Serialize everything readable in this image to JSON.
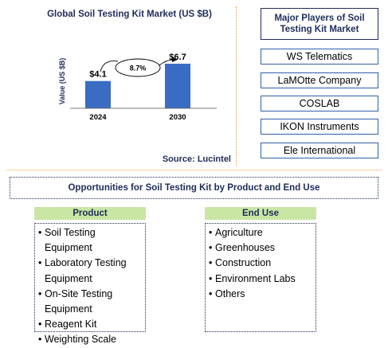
{
  "chart_data": {
    "type": "bar",
    "title": "Global Soil Testing Kit Market (US $B)",
    "ylabel": "Value (US $B)",
    "xlabel": "",
    "categories": [
      "2024",
      "2030"
    ],
    "values": [
      4.1,
      6.7
    ],
    "data_labels": [
      "$4.1",
      "$6.7"
    ],
    "annotation": "8.7%",
    "ylim": [
      0,
      7.5
    ],
    "bar_color": "#3a6cc4",
    "grid": false
  },
  "source": "Source: Lucintel",
  "players": {
    "title": "Major Players of Soil Testing Kit Market",
    "items": [
      "WS Telematics",
      "LaMOtte Company",
      "COSLAB",
      "IKON Instruments",
      "Ele International"
    ]
  },
  "opportunities": {
    "title": "Opportunities for Soil Testing Kit by Product and End Use",
    "product": {
      "header": "Product",
      "items": [
        "Soil Testing Equipment",
        "Laboratory Testing Equipment",
        "On-Site Testing Equipment",
        "Reagent Kit",
        "Weighting Scale"
      ]
    },
    "end_use": {
      "header": "End Use",
      "items": [
        "Agriculture",
        "Greenhouses",
        "Construction",
        "Environment Labs",
        "Others"
      ]
    }
  },
  "colors": {
    "title_navy": "#1f2d5a",
    "header_green": "#c9e6a4",
    "divider_orange": "#e8a33c"
  }
}
